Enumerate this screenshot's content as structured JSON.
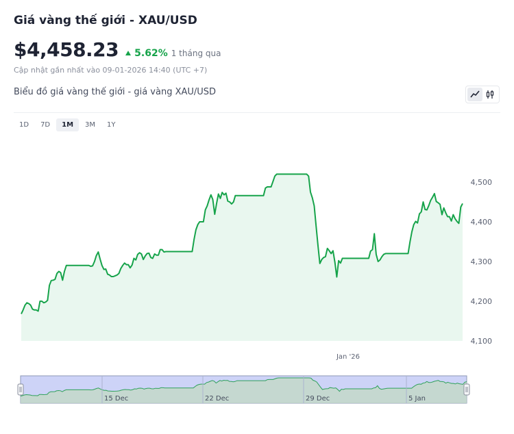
{
  "header": {
    "title": "Giá vàng thế giới - XAU/USD",
    "price": "$4,458.23",
    "change": "5.62%",
    "period": "1 tháng qua",
    "updated": "Cập nhật gần nhất vào 09-01-2026 14:40 (UTC +7)"
  },
  "chart_title": "Biểu đồ giá vàng thế giới - giá vàng XAU/USD",
  "chart_type_icons": [
    "line-chart-icon",
    "candlestick-icon"
  ],
  "ranges": [
    "1D",
    "7D",
    "1M",
    "3M",
    "1Y"
  ],
  "active_range": "1M",
  "colors": {
    "line": "#16a34a",
    "area": "#e9f7ef",
    "up": "#16a34a",
    "navigator_bg": "#cdd3f7"
  },
  "chart_data": {
    "type": "area",
    "xlabel": "",
    "ylabel": "",
    "x_tick_labels": [
      "Jan '26"
    ],
    "y_ticks": [
      4100,
      4200,
      4300,
      4400,
      4500
    ],
    "ylim": [
      4100,
      4540
    ],
    "grid": false,
    "navigator_labels": [
      "15 Dec",
      "22 Dec",
      "29 Dec",
      "5 Jan"
    ],
    "series": [
      {
        "values": [
          4168,
          4178,
          4190,
          4196,
          4194,
          4190,
          4180,
          4178,
          4178,
          4175,
          4200,
          4200,
          4196,
          4198,
          4202,
          4240,
          4252,
          4253,
          4255,
          4270,
          4275,
          4272,
          4253,
          4275,
          4290,
          4290,
          4290,
          4290,
          4290,
          4290,
          4290,
          4290,
          4290,
          4290,
          4290,
          4290,
          4290,
          4288,
          4289,
          4300,
          4315,
          4324,
          4306,
          4290,
          4280,
          4281,
          4268,
          4266,
          4262,
          4262,
          4264,
          4266,
          4270,
          4282,
          4290,
          4296,
          4292,
          4292,
          4284,
          4291,
          4308,
          4304,
          4318,
          4322,
          4319,
          4305,
          4314,
          4320,
          4321,
          4310,
          4308,
          4319,
          4316,
          4316,
          4330,
          4330,
          4324,
          4325,
          4325,
          4325,
          4325,
          4325,
          4325,
          4325,
          4325,
          4325,
          4325,
          4325,
          4325,
          4325,
          4325,
          4325,
          4355,
          4380,
          4393,
          4400,
          4400,
          4400,
          4430,
          4440,
          4455,
          4468,
          4456,
          4419,
          4446,
          4470,
          4459,
          4474,
          4468,
          4472,
          4452,
          4450,
          4445,
          4450,
          4466,
          4466,
          4466,
          4466,
          4466,
          4466,
          4466,
          4466,
          4466,
          4466,
          4466,
          4466,
          4466,
          4466,
          4466,
          4466,
          4485,
          4488,
          4488,
          4488,
          4501,
          4515,
          4520,
          4520,
          4520,
          4520,
          4520,
          4520,
          4520,
          4520,
          4520,
          4520,
          4520,
          4520,
          4520,
          4520,
          4520,
          4520,
          4520,
          4515,
          4475,
          4460,
          4440,
          4390,
          4340,
          4295,
          4305,
          4310,
          4312,
          4333,
          4327,
          4320,
          4327,
          4298,
          4261,
          4302,
          4296,
          4308,
          4308,
          4308,
          4308,
          4308,
          4308,
          4308,
          4308,
          4308,
          4308,
          4308,
          4308,
          4308,
          4308,
          4308,
          4326,
          4330,
          4370,
          4318,
          4300,
          4304,
          4312,
          4318,
          4320,
          4320,
          4320,
          4320,
          4320,
          4320,
          4320,
          4320,
          4320,
          4320,
          4320,
          4320,
          4320,
          4350,
          4375,
          4393,
          4401,
          4397,
          4420,
          4425,
          4450,
          4431,
          4430,
          4441,
          4454,
          4462,
          4471,
          4451,
          4448,
          4444,
          4418,
          4435,
          4423,
          4413,
          4413,
          4402,
          4418,
          4408,
          4401,
          4396,
          4437,
          4446
        ]
      }
    ]
  }
}
